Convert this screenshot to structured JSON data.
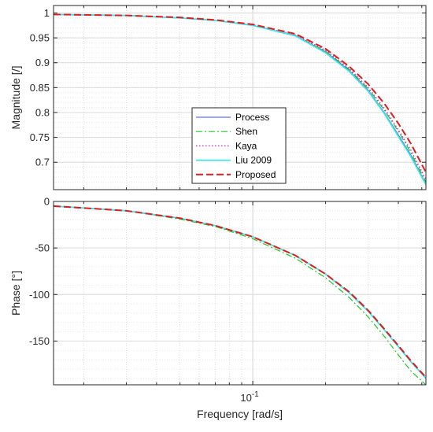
{
  "chart_data": [
    {
      "type": "line",
      "ylabel": "Magnitude [/]",
      "xlabel": "",
      "xscale": "log",
      "xlim": [
        0.015,
        0.52
      ],
      "ylim": [
        0.645,
        1.015
      ],
      "yticks": [
        0.7,
        0.75,
        0.8,
        0.85,
        0.9,
        0.95,
        1
      ],
      "ytick_labels": [
        "0.7",
        "0.75",
        "0.8",
        "0.85",
        "0.9",
        "0.95",
        "1"
      ],
      "grid": true,
      "legend_position": "center-left",
      "series": [
        {
          "name": "Process",
          "color": "#3a4fd6",
          "style": "solid",
          "x": [
            0.015,
            0.03,
            0.05,
            0.07,
            0.1,
            0.15,
            0.2,
            0.25,
            0.3,
            0.35,
            0.4,
            0.45,
            0.52
          ],
          "y": [
            0.997,
            0.995,
            0.99,
            0.985,
            0.975,
            0.955,
            0.922,
            0.885,
            0.845,
            0.8,
            0.755,
            0.715,
            0.657
          ]
        },
        {
          "name": "Shen",
          "color": "#22c522",
          "style": "dashdot",
          "x": [
            0.015,
            0.03,
            0.05,
            0.07,
            0.1,
            0.15,
            0.2,
            0.25,
            0.3,
            0.35,
            0.4,
            0.45,
            0.52
          ],
          "y": [
            0.997,
            0.995,
            0.99,
            0.985,
            0.975,
            0.955,
            0.923,
            0.887,
            0.848,
            0.805,
            0.762,
            0.72,
            0.66
          ]
        },
        {
          "name": "Kaya",
          "color": "#d433d4",
          "style": "dotted",
          "x": [
            0.015,
            0.03,
            0.05,
            0.07,
            0.1,
            0.15,
            0.2,
            0.25,
            0.3,
            0.35,
            0.4,
            0.45,
            0.52
          ],
          "y": [
            0.997,
            0.995,
            0.99,
            0.985,
            0.976,
            0.956,
            0.925,
            0.889,
            0.85,
            0.808,
            0.765,
            0.725,
            0.665
          ]
        },
        {
          "name": "Liu 2009",
          "color": "#3fe4ea",
          "style": "solid",
          "x": [
            0.015,
            0.03,
            0.05,
            0.07,
            0.1,
            0.15,
            0.2,
            0.25,
            0.3,
            0.35,
            0.4,
            0.45,
            0.52
          ],
          "y": [
            0.997,
            0.995,
            0.99,
            0.985,
            0.975,
            0.954,
            0.92,
            0.883,
            0.843,
            0.798,
            0.752,
            0.712,
            0.655
          ]
        },
        {
          "name": "Proposed",
          "color": "#d91f1f",
          "style": "dashed",
          "x": [
            0.015,
            0.03,
            0.05,
            0.07,
            0.1,
            0.15,
            0.2,
            0.25,
            0.3,
            0.35,
            0.4,
            0.45,
            0.52
          ],
          "y": [
            0.997,
            0.995,
            0.991,
            0.986,
            0.977,
            0.958,
            0.928,
            0.893,
            0.857,
            0.818,
            0.778,
            0.738,
            0.68
          ]
        }
      ]
    },
    {
      "type": "line",
      "ylabel": "Phase [°]",
      "xlabel": "Frequency [rad/s]",
      "xscale": "log",
      "xlim": [
        0.015,
        0.52
      ],
      "ylim": [
        -197,
        0
      ],
      "yticks": [
        -150,
        -100,
        -50,
        0
      ],
      "ytick_labels": [
        "-150",
        "-100",
        "-50",
        "0"
      ],
      "xticks": [
        0.1
      ],
      "xtick_labels": [
        "10^-1"
      ],
      "grid": true,
      "series": [
        {
          "name": "Process",
          "color": "#3a4fd6",
          "style": "solid",
          "x": [
            0.015,
            0.02,
            0.03,
            0.05,
            0.07,
            0.1,
            0.15,
            0.2,
            0.25,
            0.3,
            0.35,
            0.4,
            0.45,
            0.52
          ],
          "y": [
            -5,
            -7,
            -10,
            -18,
            -26,
            -38,
            -58,
            -78,
            -98,
            -118,
            -138,
            -156,
            -172,
            -190
          ]
        },
        {
          "name": "Shen",
          "color": "#22c522",
          "style": "dashdot",
          "x": [
            0.015,
            0.02,
            0.03,
            0.05,
            0.07,
            0.1,
            0.15,
            0.2,
            0.25,
            0.3,
            0.35,
            0.4,
            0.45,
            0.52
          ],
          "y": [
            -5,
            -7,
            -10,
            -19,
            -27,
            -40,
            -61,
            -82,
            -103,
            -124,
            -145,
            -165,
            -182,
            -197
          ]
        },
        {
          "name": "Kaya",
          "color": "#d433d4",
          "style": "dotted",
          "x": [
            0.015,
            0.02,
            0.03,
            0.05,
            0.07,
            0.1,
            0.15,
            0.2,
            0.25,
            0.3,
            0.35,
            0.4,
            0.45,
            0.52
          ],
          "y": [
            -5,
            -7,
            -10,
            -18,
            -26,
            -38,
            -58,
            -78,
            -98,
            -118,
            -138,
            -156,
            -172,
            -190
          ]
        },
        {
          "name": "Liu 2009",
          "color": "#3fe4ea",
          "style": "solid",
          "x": [
            0.015,
            0.02,
            0.03,
            0.05,
            0.07,
            0.1,
            0.15,
            0.2,
            0.25,
            0.3,
            0.35,
            0.4,
            0.45,
            0.52
          ],
          "y": [
            -5,
            -7,
            -10,
            -18,
            -26,
            -38,
            -58,
            -78,
            -98,
            -118,
            -138,
            -156,
            -172,
            -190
          ]
        },
        {
          "name": "Proposed",
          "color": "#d91f1f",
          "style": "dashed",
          "x": [
            0.015,
            0.02,
            0.03,
            0.05,
            0.07,
            0.1,
            0.15,
            0.2,
            0.25,
            0.3,
            0.35,
            0.4,
            0.45,
            0.52
          ],
          "y": [
            -5,
            -7,
            -10,
            -18,
            -26,
            -38,
            -58,
            -78,
            -97,
            -117,
            -137,
            -155,
            -171,
            -189
          ]
        }
      ]
    }
  ]
}
